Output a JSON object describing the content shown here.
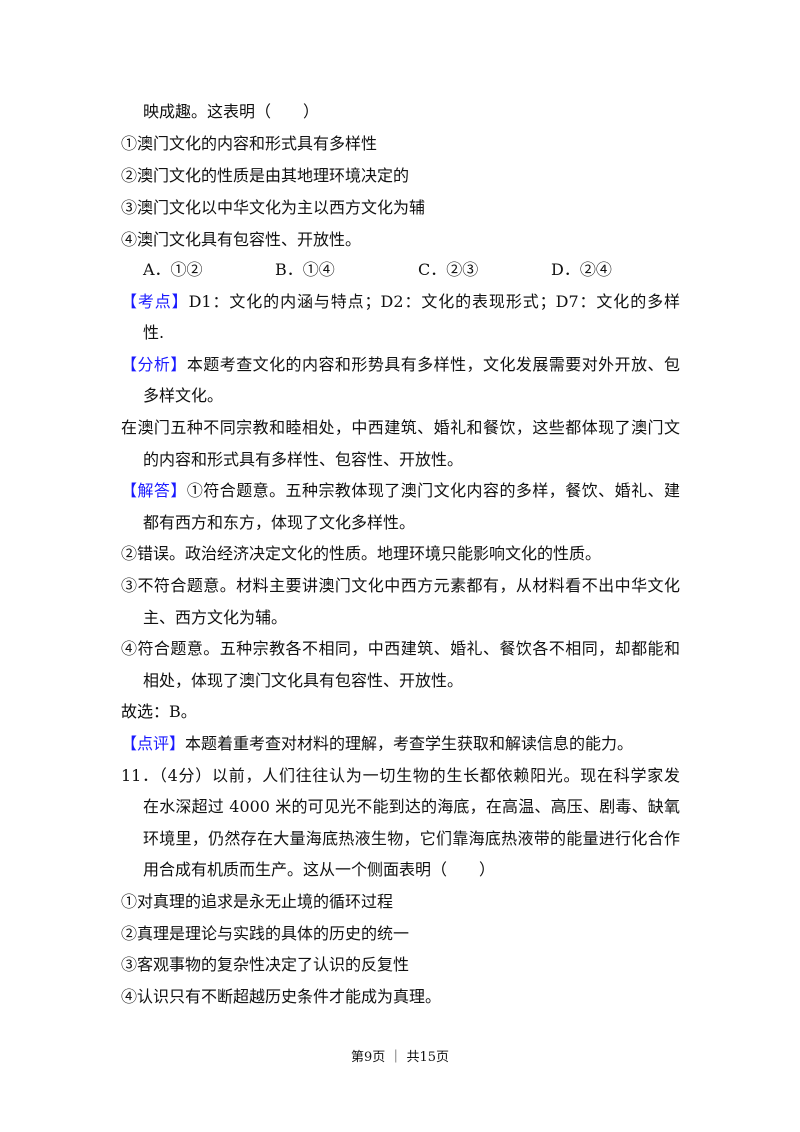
{
  "carryover": "映成趣。这表明（　　）",
  "statements_q10": [
    "①澳门文化的内容和形式具有多样性",
    "②澳门文化的性质是由其地理环境决定的",
    "③澳门文化以中华文化为主以西方文化为辅",
    "④澳门文化具有包容性、开放性。"
  ],
  "options": [
    "A．①②",
    "B．①④",
    "C．②③",
    "D．②④"
  ],
  "paragraphs": [
    {
      "label": "【考点】",
      "lines": [
        "D1：文化的内涵与特点；D2：文化的表现形式；D7：文化的多样",
        "性."
      ]
    },
    {
      "label": "【分析】",
      "lines": [
        "本题考查文化的内容和形势具有多样性，文化发展需要对外开放、包容",
        "多样文化。"
      ]
    },
    {
      "label": "",
      "lines": [
        "在澳门五种不同宗教和睦相处，中西建筑、婚礼和餐饮，这些都体现了澳门文化",
        "的内容和形式具有多样性、包容性、开放性。"
      ]
    },
    {
      "label": "【解答】",
      "lines": [
        "①符合题意。五种宗教体现了澳门文化内容的多样，餐饮、婚礼、建筑",
        "都有西方和东方，体现了文化多样性。"
      ]
    },
    {
      "label": "",
      "lines": [
        "②错误。政治经济决定文化的性质。地理环境只能影响文化的性质。"
      ]
    },
    {
      "label": "",
      "lines": [
        "③不符合题意。材料主要讲澳门文化中西方元素都有，从材料看不出中华文化为",
        "主、西方文化为辅。"
      ]
    },
    {
      "label": "",
      "lines": [
        "④符合题意。五种宗教各不相同，中西建筑、婚礼、餐饮各不相同，却都能和睦",
        "相处，体现了澳门文化具有包容性、开放性。"
      ]
    },
    {
      "label": "",
      "lines": [
        "故选：B。"
      ]
    },
    {
      "label": "【点评】",
      "lines": [
        "本题着重考查对材料的理解，考查学生获取和解读信息的能力。"
      ]
    },
    {
      "label": "",
      "lines": [
        "11．（4分）以前，人们往往认为一切生物的生长都依赖阳光。现在科学家发现，",
        "在水深超过 4000 米的可见光不能到达的海底，在高温、高压、剧毒、缺氧的",
        "环境里，仍然存在大量海底热液生物，它们靠海底热液带的能量进行化合作",
        "用合成有机质而生产。这从一个侧面表明（　　）"
      ]
    },
    {
      "label": "",
      "lines": [
        "①对真理的追求是永无止境的循环过程"
      ]
    },
    {
      "label": "",
      "lines": [
        "②真理是理论与实践的具体的历史的统一"
      ]
    },
    {
      "label": "",
      "lines": [
        "③客观事物的复杂性决定了认识的反复性"
      ]
    },
    {
      "label": "",
      "lines": [
        "④认识只有不断超越历史条件才能成为真理。"
      ]
    }
  ],
  "footer": "第9页 ｜ 共15页",
  "colors": {
    "label": "#1a1aff",
    "text": "#111111"
  }
}
